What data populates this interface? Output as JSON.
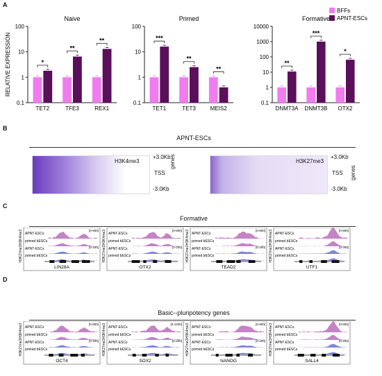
{
  "panels": {
    "A": "A",
    "B": "B",
    "C": "C",
    "D": "D"
  },
  "colors": {
    "bffs": "#f07cf0",
    "apnt": "#5a0f5a",
    "track_purple": "#b05ab4",
    "track_blue": "#5a5ad2",
    "heatmap": "#6a3cc0"
  },
  "legend": {
    "items": [
      "BFFs",
      "APNT-ESCs"
    ]
  },
  "ylabel": "RELATIVE EXPRESSION",
  "chart_data": [
    {
      "type": "bar",
      "title": "Naive",
      "log_scale": true,
      "ylim": [
        0.1,
        100
      ],
      "yticks": [
        "0.1",
        "1",
        "10",
        "100"
      ],
      "categories": [
        "TET2",
        "TFE3",
        "REX1"
      ],
      "series": [
        {
          "name": "BFFs",
          "values": [
            1,
            1,
            1
          ]
        },
        {
          "name": "APNT-ESCs",
          "values": [
            1.8,
            6.5,
            13
          ]
        }
      ],
      "significance": [
        "*",
        "**",
        "**"
      ]
    },
    {
      "type": "bar",
      "title": "Primed",
      "log_scale": true,
      "ylim": [
        0.1,
        100
      ],
      "yticks": [
        "0.1",
        "1",
        "10",
        "100"
      ],
      "categories": [
        "TET1",
        "TET3",
        "MEIS2"
      ],
      "series": [
        {
          "name": "BFFs",
          "values": [
            1,
            1,
            1
          ]
        },
        {
          "name": "APNT-ESCs",
          "values": [
            16,
            2.5,
            0.4
          ]
        }
      ],
      "significance": [
        "***",
        "**",
        "**"
      ]
    },
    {
      "type": "bar",
      "title": "Formative",
      "log_scale": true,
      "ylim": [
        0.1,
        10000
      ],
      "yticks": [
        "0.1",
        "1",
        "10",
        "100",
        "1000",
        "10000"
      ],
      "categories": [
        "DNMT3A",
        "DNMT3B",
        "OTX2"
      ],
      "series": [
        {
          "name": "BFFs",
          "values": [
            1,
            1,
            1
          ]
        },
        {
          "name": "APNT-ESCs",
          "values": [
            11,
            1000,
            65
          ]
        }
      ],
      "significance": [
        "**",
        "***",
        "*"
      ]
    }
  ],
  "panel_b": {
    "title": "APNT-ESCs",
    "heatmaps": [
      {
        "mark": "H3K4me3",
        "profile": "tss_focused"
      },
      {
        "mark": "H3K27me3",
        "profile": "broad"
      }
    ],
    "labels": {
      "top": "+3.0Kb",
      "mid": "TSS",
      "bottom": "-3.0Kb",
      "genes": "genes"
    }
  },
  "panel_c": {
    "title": "Formative",
    "tracks": [
      {
        "gene": "LIN28A",
        "range_top": "[0-900]",
        "range_bottom": "[0-200]"
      },
      {
        "gene": "OTX2",
        "range_top": "[0-800]",
        "range_bottom": "[0-200]"
      },
      {
        "gene": "TEAD2",
        "range_top": "[0-800]",
        "range_bottom": "[0-200]"
      },
      {
        "gene": "UTF1",
        "range_top": "[0-800]",
        "range_bottom": "[0-300]"
      }
    ]
  },
  "panel_d": {
    "title": "Basic--pluripotency genes",
    "tracks": [
      {
        "gene": "OCT4",
        "range_top": "[0-800]",
        "range_bottom": "[0-200]"
      },
      {
        "gene": "SOX2",
        "range_top": "[0-1200]",
        "range_bottom": "[0-200]"
      },
      {
        "gene": "NANOG",
        "range_top": "[0-800]",
        "range_bottom": "[0-200]"
      },
      {
        "gene": "SALL4",
        "range_top": "[0-800]",
        "range_bottom": "[0-200]"
      }
    ]
  },
  "track_rows": [
    "APNT-ESCs",
    "primed bESCs",
    "APNT-ESCs",
    "primed bESCs"
  ],
  "side_labels": {
    "k4": "H3K4me3",
    "k27": "H3K27me3"
  }
}
